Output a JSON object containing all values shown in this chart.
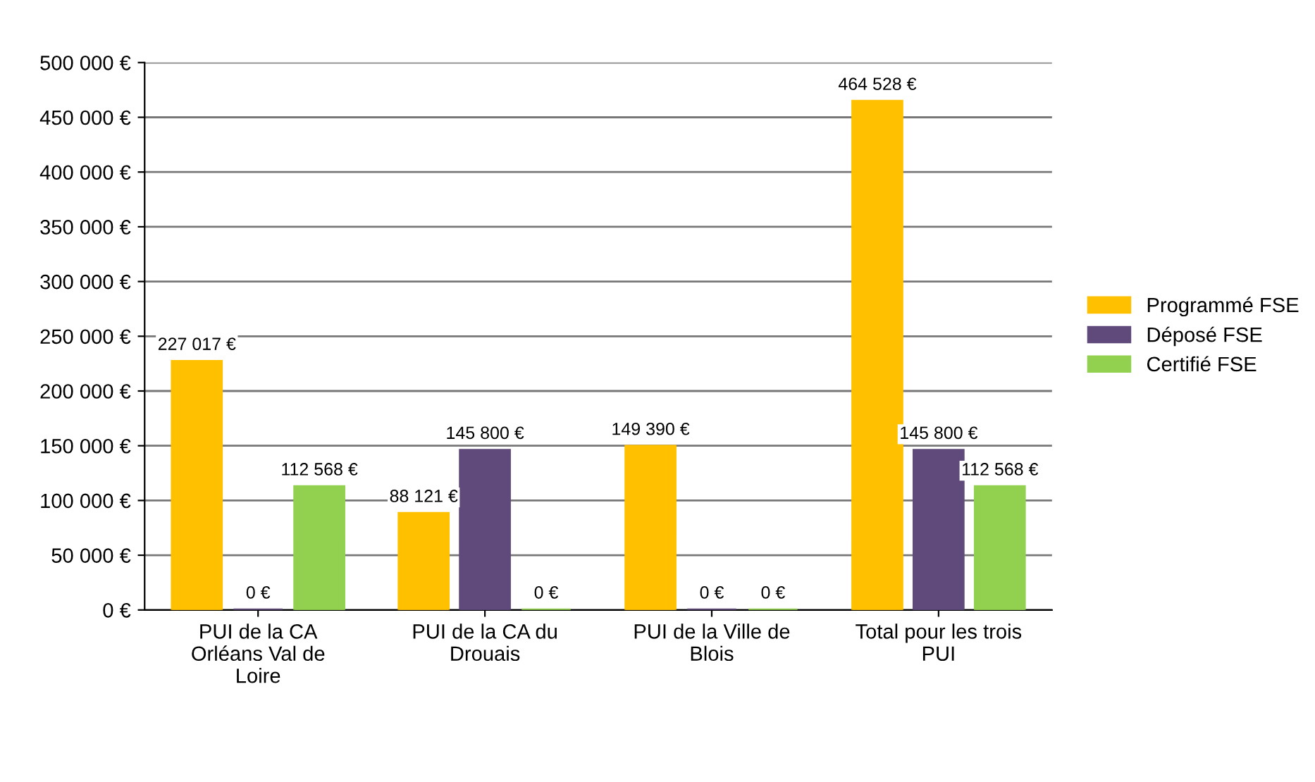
{
  "chart_data": {
    "type": "bar",
    "categories": [
      "PUI de la CA\nOrléans Val de\nLoire",
      "PUI de la CA du\nDrouais",
      "PUI de la Ville de\nBlois",
      "Total pour les trois\nPUI"
    ],
    "series": [
      {
        "name": "Programmé FSE",
        "color": "#ffc000",
        "values": [
          227017,
          88121,
          149390,
          464528
        ],
        "value_labels": [
          "227 017 €",
          "88 121 €",
          "149 390 €",
          "464 528 €"
        ]
      },
      {
        "name": "Déposé FSE",
        "color": "#604a7b",
        "values": [
          0,
          145800,
          0,
          145800
        ],
        "value_labels": [
          "0 €",
          "145 800 €",
          "0 €",
          "145 800 €"
        ]
      },
      {
        "name": "Certifié FSE",
        "color": "#92d050",
        "values": [
          112568,
          0,
          0,
          112568
        ],
        "value_labels": [
          "112 568 €",
          "0 €",
          "0 €",
          "112 568 €"
        ]
      }
    ],
    "ylim": [
      0,
      500000
    ],
    "yticks": [
      {
        "value": 0,
        "label": "0 €"
      },
      {
        "value": 50000,
        "label": "50 000 €"
      },
      {
        "value": 100000,
        "label": "100 000 €"
      },
      {
        "value": 150000,
        "label": "150 000 €"
      },
      {
        "value": 200000,
        "label": "200 000 €"
      },
      {
        "value": 250000,
        "label": "250 000 €"
      },
      {
        "value": 300000,
        "label": "300 000 €"
      },
      {
        "value": 350000,
        "label": "350 000 €"
      },
      {
        "value": 400000,
        "label": "400 000 €"
      },
      {
        "value": 450000,
        "label": "450 000 €"
      },
      {
        "value": 500000,
        "label": "500 000 €"
      }
    ],
    "grid": "y",
    "legend": "right"
  }
}
